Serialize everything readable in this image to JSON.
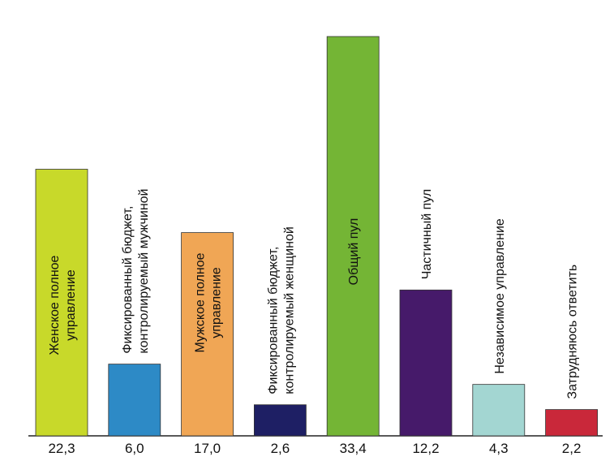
{
  "chart_data": {
    "type": "bar",
    "categories": [
      [
        "Женское полное",
        "управление"
      ],
      [
        "Фиксированный бюджет,",
        "контролируемый мужчиной"
      ],
      [
        "Мужское полное",
        "управление"
      ],
      [
        "Фиксированный бюджет,",
        "контролируемый женщиной"
      ],
      [
        "Общий пул"
      ],
      [
        "Частичный пул"
      ],
      [
        "Независимое управление"
      ],
      [
        "Затрудняюсь ответить"
      ]
    ],
    "values": [
      22.3,
      6.0,
      17.0,
      2.6,
      33.4,
      12.2,
      4.3,
      2.2
    ],
    "value_labels": [
      "22,3",
      "6,0",
      "17,0",
      "2,6",
      "33,4",
      "12,2",
      "4,3",
      "2,2"
    ],
    "colors": [
      "#c8d92a",
      "#2d8ac6",
      "#f0a655",
      "#1e1f64",
      "#74b535",
      "#461a6a",
      "#a3d6d2",
      "#c9283a"
    ],
    "title": "",
    "xlabel": "",
    "ylabel": "",
    "ylim": [
      0,
      33.4
    ],
    "grid": false,
    "legend": "none"
  }
}
